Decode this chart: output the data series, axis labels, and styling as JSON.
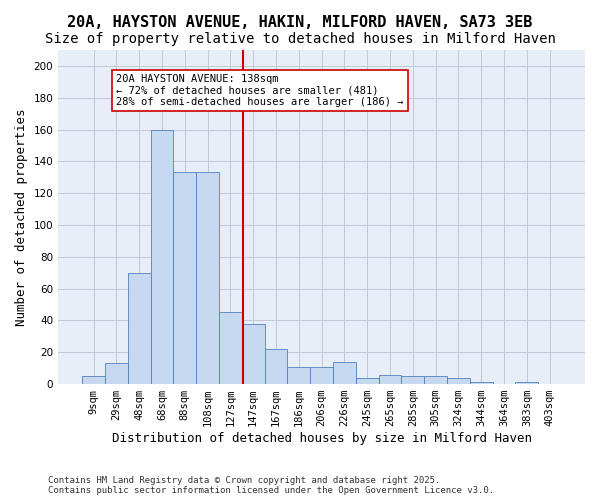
{
  "title1": "20A, HAYSTON AVENUE, HAKIN, MILFORD HAVEN, SA73 3EB",
  "title2": "Size of property relative to detached houses in Milford Haven",
  "xlabel": "Distribution of detached houses by size in Milford Haven",
  "ylabel": "Number of detached properties",
  "footnote": "Contains HM Land Registry data © Crown copyright and database right 2025.\nContains public sector information licensed under the Open Government Licence v3.0.",
  "bar_labels": [
    "9sqm",
    "29sqm",
    "48sqm",
    "68sqm",
    "88sqm",
    "108sqm",
    "127sqm",
    "147sqm",
    "167sqm",
    "186sqm",
    "206sqm",
    "226sqm",
    "245sqm",
    "265sqm",
    "285sqm",
    "305sqm",
    "324sqm",
    "344sqm",
    "364sqm",
    "383sqm",
    "403sqm"
  ],
  "bar_values": [
    5,
    13,
    70,
    160,
    133,
    133,
    45,
    38,
    22,
    11,
    11,
    14,
    4,
    6,
    5,
    5,
    4,
    1,
    0,
    1,
    0
  ],
  "bar_color": "#c6d9f1",
  "bar_edge_color": "#4f81bd",
  "property_line_label": "20A HAYSTON AVENUE: 138sqm",
  "annotation_line1": "← 72% of detached houses are smaller (481)",
  "annotation_line2": "28% of semi-detached houses are larger (186) →",
  "vline_color": "#cc0000",
  "annotation_box_edge": "#cc0000",
  "ylim": [
    0,
    210
  ],
  "yticks": [
    0,
    20,
    40,
    60,
    80,
    100,
    120,
    140,
    160,
    180,
    200
  ],
  "grid_color": "#c0c8d8",
  "bg_color": "#e8eef8",
  "title_fontsize": 11,
  "subtitle_fontsize": 10,
  "axis_label_fontsize": 9,
  "tick_fontsize": 7.5,
  "annotation_fontsize": 7.5,
  "footnote_fontsize": 6.5
}
